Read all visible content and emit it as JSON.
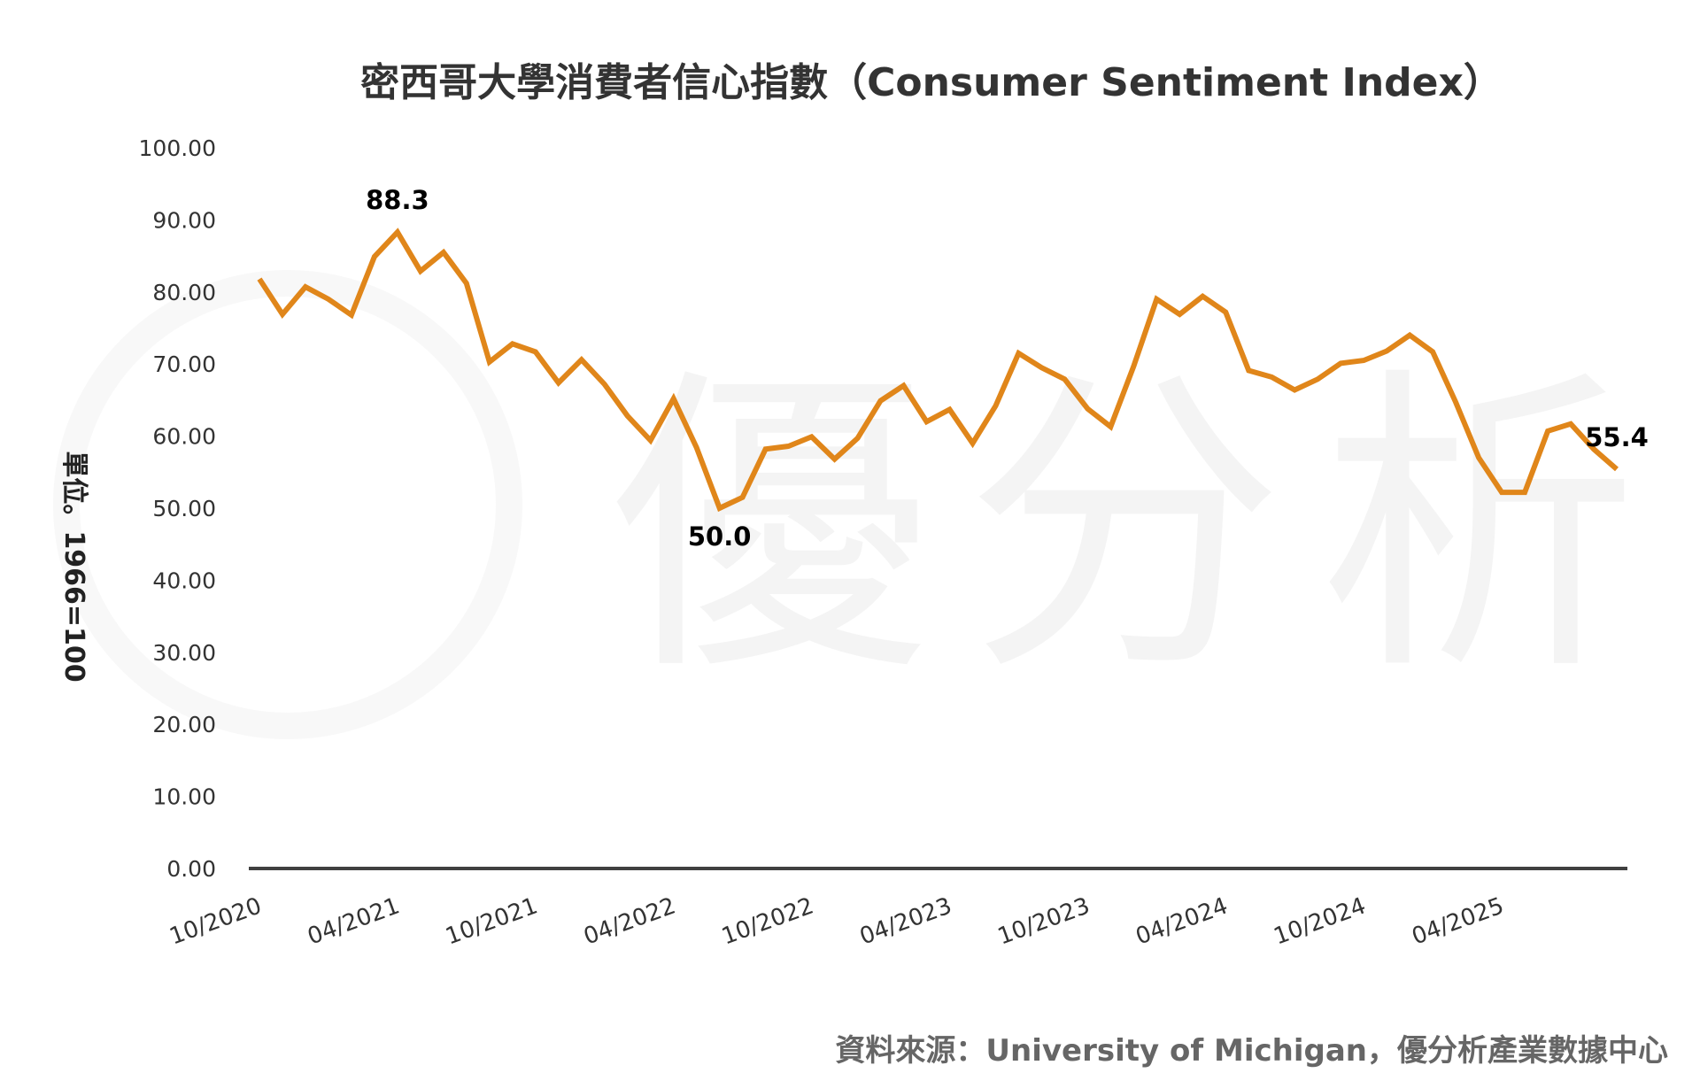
{
  "chart_data": {
    "type": "line",
    "title": "密西哥大學消費者信心指數（Consumer Sentiment Index）",
    "ylabel": "單位。1966=100",
    "source": "資料來源：University of Michigan，優分析產業數據中心",
    "watermark": "優分析",
    "ylim": [
      0,
      100
    ],
    "yticks": [
      "0.00",
      "10.00",
      "20.00",
      "30.00",
      "40.00",
      "50.00",
      "60.00",
      "70.00",
      "80.00",
      "90.00",
      "100.00"
    ],
    "xtick_labels": [
      "10/2020",
      "04/2021",
      "10/2021",
      "04/2022",
      "10/2022",
      "04/2023",
      "10/2023",
      "04/2024",
      "10/2024",
      "04/2025"
    ],
    "grid": false,
    "line_color": "#E0861A",
    "x": [
      "10/2020",
      "11/2020",
      "12/2020",
      "01/2021",
      "02/2021",
      "03/2021",
      "04/2021",
      "05/2021",
      "06/2021",
      "07/2021",
      "08/2021",
      "09/2021",
      "10/2021",
      "11/2021",
      "12/2021",
      "01/2022",
      "02/2022",
      "03/2022",
      "04/2022",
      "05/2022",
      "06/2022",
      "07/2022",
      "08/2022",
      "09/2022",
      "10/2022",
      "11/2022",
      "12/2022",
      "01/2023",
      "02/2023",
      "03/2023",
      "04/2023",
      "05/2023",
      "06/2023",
      "07/2023",
      "08/2023",
      "09/2023",
      "10/2023",
      "11/2023",
      "12/2023",
      "01/2024",
      "02/2024",
      "03/2024",
      "04/2024",
      "05/2024",
      "06/2024",
      "07/2024",
      "08/2024",
      "09/2024",
      "10/2024",
      "11/2024",
      "12/2024",
      "01/2025",
      "02/2025",
      "03/2025",
      "04/2025",
      "05/2025",
      "06/2025",
      "07/2025",
      "08/2025",
      "09/2025"
    ],
    "values": [
      81.8,
      76.9,
      80.7,
      79.0,
      76.8,
      84.9,
      88.3,
      82.9,
      85.5,
      81.2,
      70.3,
      72.8,
      71.7,
      67.4,
      70.6,
      67.2,
      62.8,
      59.4,
      65.2,
      58.4,
      50.0,
      51.5,
      58.2,
      58.6,
      59.9,
      56.8,
      59.7,
      64.9,
      67.0,
      62.0,
      63.7,
      59.0,
      64.2,
      71.5,
      69.5,
      67.9,
      63.8,
      61.3,
      69.7,
      79.0,
      76.9,
      79.4,
      77.2,
      69.1,
      68.2,
      66.4,
      67.9,
      70.1,
      70.5,
      71.8,
      74.0,
      71.7,
      64.7,
      57.0,
      52.2,
      52.2,
      60.7,
      61.7,
      58.2,
      55.4
    ],
    "annotations": [
      {
        "x": "04/2021",
        "label": "88.3",
        "position": "above"
      },
      {
        "x": "06/2022",
        "label": "50.0",
        "position": "below"
      },
      {
        "x": "09/2025",
        "label": "55.4",
        "position": "above"
      }
    ]
  }
}
